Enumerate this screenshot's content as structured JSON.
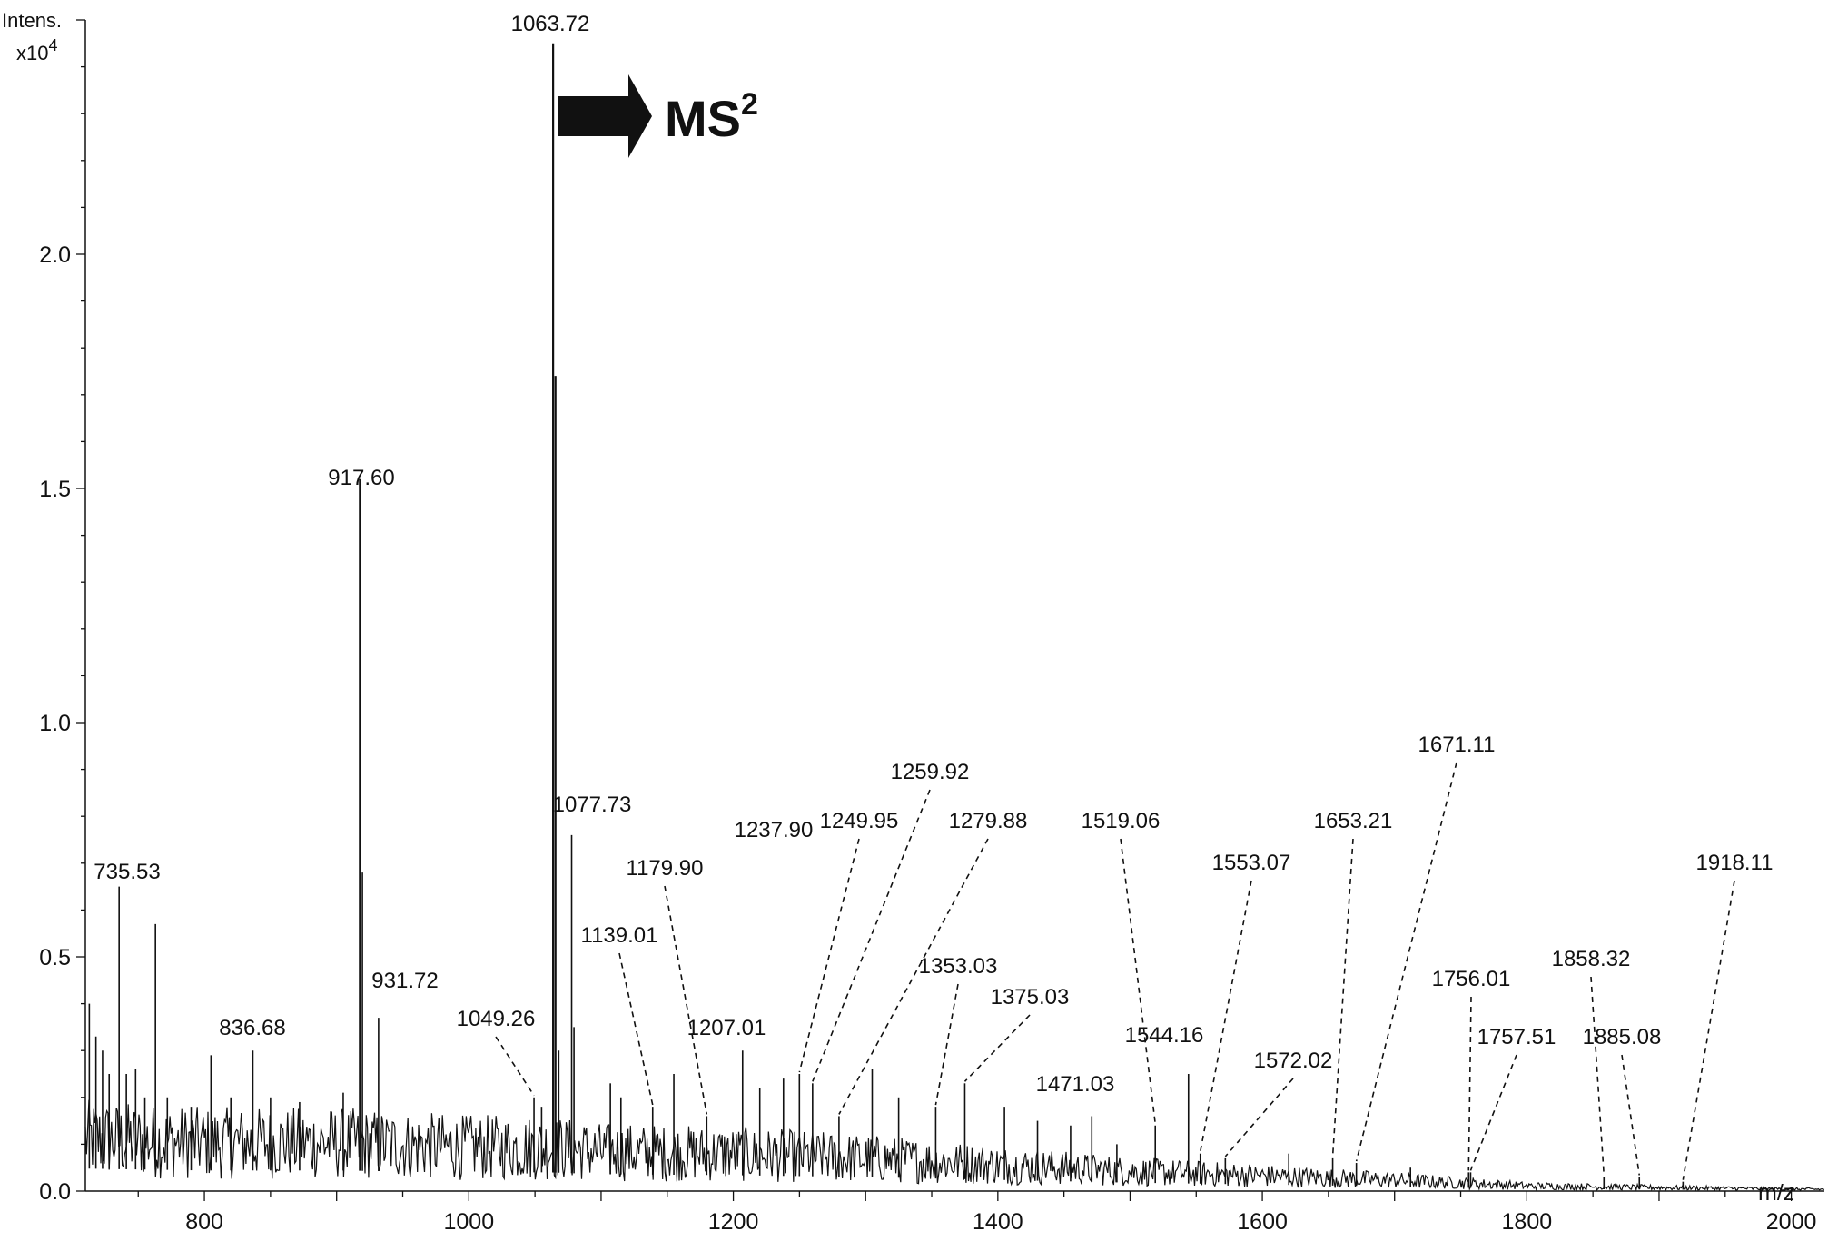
{
  "chart_data": {
    "type": "line",
    "y_axis_title_line1": "Intens.",
    "y_axis_title_line2_base": "x10",
    "y_axis_title_line2_exp": "4",
    "x_unit": "m/z",
    "xlim": [
      710,
      2025
    ],
    "ylim": [
      0,
      2.5
    ],
    "x_ticks": [
      800,
      1000,
      1200,
      1400,
      1600,
      1800,
      2000
    ],
    "x_tick_labels": [
      "800",
      "1000",
      "1200",
      "1400",
      "1600",
      "1800",
      "2000"
    ],
    "y_ticks": [
      0,
      0.5,
      1.0,
      1.5,
      2.0
    ],
    "y_tick_labels": [
      "0.0",
      "0.5",
      "1.0",
      "1.5",
      "2.0"
    ],
    "grid": false,
    "annotation": {
      "text": "MS",
      "superscript": "2"
    },
    "baseline": [
      [
        710,
        0.12
      ],
      [
        800,
        0.11
      ],
      [
        900,
        0.11
      ],
      [
        1000,
        0.1
      ],
      [
        1060,
        0.1
      ],
      [
        1100,
        0.09
      ],
      [
        1200,
        0.085
      ],
      [
        1300,
        0.075
      ],
      [
        1400,
        0.06
      ],
      [
        1500,
        0.045
      ],
      [
        1600,
        0.035
      ],
      [
        1700,
        0.025
      ],
      [
        1800,
        0.012
      ],
      [
        1900,
        0.008
      ],
      [
        2025,
        0.004
      ]
    ],
    "series": [
      {
        "peaks": [
          {
            "x": 713,
            "y": 0.4
          },
          {
            "x": 718,
            "y": 0.33
          },
          {
            "x": 723,
            "y": 0.3
          },
          {
            "x": 728,
            "y": 0.25
          },
          {
            "x": 735.53,
            "y": 0.65,
            "label": "735.53",
            "leader": "solid"
          },
          {
            "x": 741,
            "y": 0.25
          },
          {
            "x": 748,
            "y": 0.26
          },
          {
            "x": 755,
            "y": 0.2
          },
          {
            "x": 763,
            "y": 0.57
          },
          {
            "x": 772,
            "y": 0.2
          },
          {
            "x": 790,
            "y": 0.18
          },
          {
            "x": 805,
            "y": 0.29
          },
          {
            "x": 820,
            "y": 0.2
          },
          {
            "x": 836.68,
            "y": 0.3,
            "label": "836.68",
            "leader": "solid"
          },
          {
            "x": 850,
            "y": 0.2
          },
          {
            "x": 872,
            "y": 0.19
          },
          {
            "x": 905,
            "y": 0.21
          },
          {
            "x": 917.6,
            "y": 1.52,
            "label": "917.60",
            "leader": "solid"
          },
          {
            "x": 919.5,
            "y": 0.68
          },
          {
            "x": 931.72,
            "y": 0.37,
            "label": "931.72",
            "leader": "solid"
          },
          {
            "x": 1049.26,
            "y": 0.2,
            "label": "1049.26",
            "leader": "dashed"
          },
          {
            "x": 1055,
            "y": 0.18
          },
          {
            "x": 1063.72,
            "y": 2.45,
            "label": "1063.72",
            "leader": "solid"
          },
          {
            "x": 1065.5,
            "y": 1.74
          },
          {
            "x": 1068,
            "y": 0.3
          },
          {
            "x": 1077.73,
            "y": 0.76,
            "label": "1077.73",
            "leader": "solid"
          },
          {
            "x": 1079.5,
            "y": 0.35
          },
          {
            "x": 1107,
            "y": 0.23
          },
          {
            "x": 1115,
            "y": 0.2
          },
          {
            "x": 1139.01,
            "y": 0.18,
            "label": "1139.01",
            "leader": "dashed"
          },
          {
            "x": 1155,
            "y": 0.25
          },
          {
            "x": 1179.9,
            "y": 0.16,
            "label": "1179.90",
            "leader": "dashed"
          },
          {
            "x": 1207.01,
            "y": 0.3,
            "label": "1207.01",
            "leader": "solid"
          },
          {
            "x": 1220,
            "y": 0.22
          },
          {
            "x": 1237.9,
            "y": 0.24,
            "label": "1237.90",
            "leader": "solid"
          },
          {
            "x": 1249.95,
            "y": 0.25,
            "label": "1249.95",
            "leader": "dashed"
          },
          {
            "x": 1259.92,
            "y": 0.23,
            "label": "1259.92",
            "leader": "dashed"
          },
          {
            "x": 1279.88,
            "y": 0.16,
            "label": "1279.88",
            "leader": "dashed"
          },
          {
            "x": 1305,
            "y": 0.26
          },
          {
            "x": 1325,
            "y": 0.2
          },
          {
            "x": 1353.03,
            "y": 0.18,
            "label": "1353.03",
            "leader": "dashed"
          },
          {
            "x": 1375.03,
            "y": 0.23,
            "label": "1375.03",
            "leader": "dashed"
          },
          {
            "x": 1405,
            "y": 0.18
          },
          {
            "x": 1430,
            "y": 0.15
          },
          {
            "x": 1455,
            "y": 0.14
          },
          {
            "x": 1471.03,
            "y": 0.16,
            "label": "1471.03",
            "leader": "solid"
          },
          {
            "x": 1490,
            "y": 0.1
          },
          {
            "x": 1519.06,
            "y": 0.14,
            "label": "1519.06",
            "leader": "dashed"
          },
          {
            "x": 1544.16,
            "y": 0.25,
            "label": "1544.16",
            "leader": "solid"
          },
          {
            "x": 1553.07,
            "y": 0.08,
            "label": "1553.07",
            "leader": "dashed"
          },
          {
            "x": 1572.02,
            "y": 0.07,
            "label": "1572.02",
            "leader": "dashed"
          },
          {
            "x": 1620,
            "y": 0.08
          },
          {
            "x": 1653.21,
            "y": 0.07,
            "label": "1653.21",
            "leader": "dashed"
          },
          {
            "x": 1671.11,
            "y": 0.06,
            "label": "1671.11",
            "leader": "dashed"
          },
          {
            "x": 1712,
            "y": 0.05
          },
          {
            "x": 1756.01,
            "y": 0.04,
            "label": "1756.01",
            "leader": "dashed"
          },
          {
            "x": 1757.51,
            "y": 0.04,
            "label": "1757.51",
            "leader": "dashed"
          },
          {
            "x": 1858.32,
            "y": 0.03,
            "label": "1858.32",
            "leader": "dashed"
          },
          {
            "x": 1885.08,
            "y": 0.03,
            "label": "1885.08",
            "leader": "dashed"
          },
          {
            "x": 1918.11,
            "y": 0.02,
            "label": "1918.11",
            "leader": "dashed"
          }
        ]
      }
    ]
  }
}
